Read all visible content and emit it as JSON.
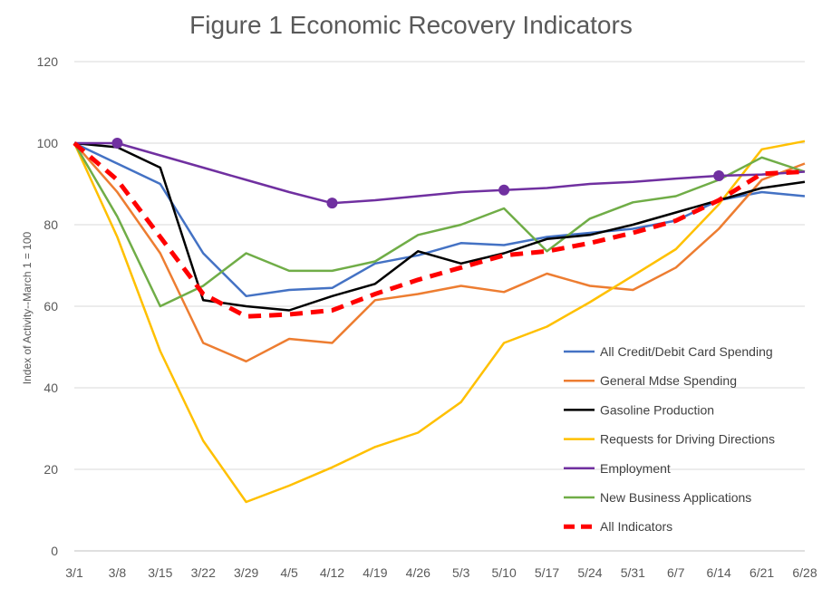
{
  "chart_data": {
    "type": "line",
    "title": "Figure 1 Economic Recovery Indicators",
    "ylabel": "Index of Activity--March 1 = 100",
    "xlabel": "",
    "ylim": [
      0,
      120
    ],
    "yticks": [
      0,
      20,
      40,
      60,
      80,
      100,
      120
    ],
    "grid": true,
    "legend_position": "bottom-right",
    "categories": [
      "3/1",
      "3/8",
      "3/15",
      "3/22",
      "3/29",
      "4/5",
      "4/12",
      "4/19",
      "4/26",
      "5/3",
      "5/10",
      "5/17",
      "5/24",
      "5/31",
      "6/7",
      "6/14",
      "6/21",
      "6/28"
    ],
    "series": [
      {
        "name": "All Credit/Debit Card Spending",
        "color": "#4472C4",
        "style": "solid",
        "values": [
          100,
          95,
          90,
          73,
          62.5,
          64,
          64.5,
          70.5,
          72.5,
          75.5,
          75,
          77,
          78,
          79,
          81,
          86,
          88,
          87
        ]
      },
      {
        "name": "General Mdse Spending",
        "color": "#ED7D31",
        "style": "solid",
        "values": [
          100,
          88,
          73,
          51,
          46.5,
          52,
          51,
          61.5,
          63,
          65,
          63.5,
          68,
          65,
          64,
          69.5,
          79,
          91,
          95
        ]
      },
      {
        "name": "Gasoline Production",
        "color": "#000000",
        "style": "solid",
        "values": [
          100,
          99,
          94,
          61.5,
          60,
          59,
          62.5,
          65.5,
          73.5,
          70.5,
          73,
          76.5,
          77.5,
          80,
          83,
          86,
          89,
          90.5
        ]
      },
      {
        "name": "Requests for Driving Directions",
        "color": "#FFC000",
        "style": "solid",
        "values": [
          100,
          77,
          49,
          27,
          12,
          16,
          20.5,
          25.5,
          29,
          36.5,
          51,
          55,
          61,
          67.5,
          74,
          85,
          98.5,
          100.5
        ]
      },
      {
        "name": "Employment",
        "color": "#7030A0",
        "style": "solid",
        "markers": [
          1,
          6,
          10,
          15
        ],
        "values": [
          100,
          100,
          97,
          94,
          91,
          88,
          85.3,
          86,
          87,
          88,
          88.5,
          89,
          90,
          90.5,
          91.3,
          92,
          92.3,
          93
        ]
      },
      {
        "name": "New Business Applications",
        "color": "#70AD47",
        "style": "solid",
        "values": [
          100,
          82,
          60,
          65,
          73,
          68.7,
          68.7,
          71,
          77.5,
          80,
          84,
          73.5,
          81.5,
          85.5,
          87,
          91,
          96.5,
          93
        ]
      },
      {
        "name": "All Indicators",
        "color": "#FF0000",
        "style": "dashed",
        "values": [
          100,
          91,
          77,
          63,
          57.5,
          58,
          59,
          63,
          66.5,
          69.5,
          72.5,
          73.5,
          75.5,
          78,
          81,
          86,
          92.5,
          93
        ]
      }
    ]
  }
}
